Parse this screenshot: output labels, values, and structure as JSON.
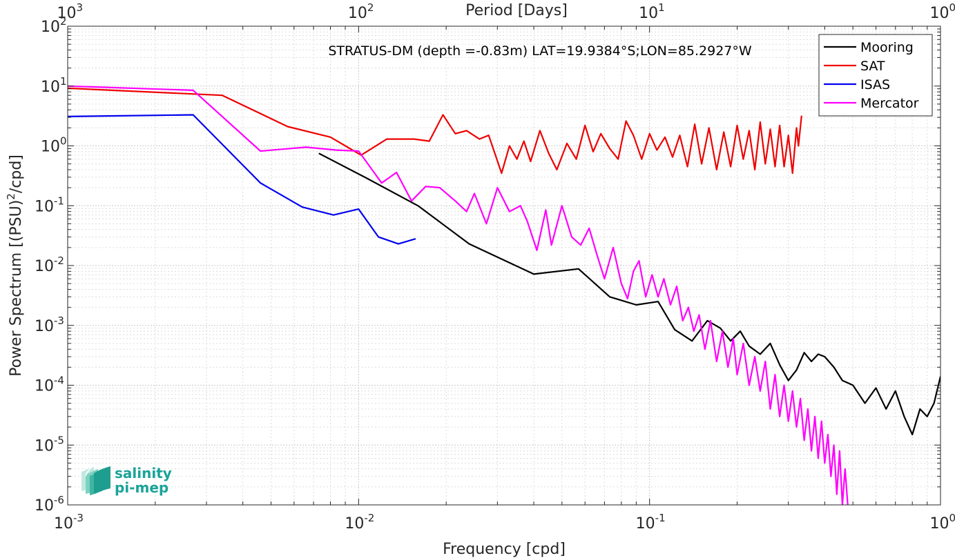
{
  "chart_data": {
    "type": "line",
    "title": "STRATUS-DM (depth =-0.83m) LAT=19.9384°S;LON=85.2927°W",
    "xlabel": "Frequency [cpd]",
    "ylabel": "Power Spectrum [(PSU)2/cpd]",
    "top_xlabel": "Period [Days]",
    "xscale": "log",
    "yscale": "log",
    "xlim": [
      0.001,
      1
    ],
    "ylim": [
      1e-06,
      100
    ],
    "grid": true,
    "legend_position": "top-right",
    "x_ticks": [
      {
        "value": 0.001,
        "base": "10",
        "exp": "-3"
      },
      {
        "value": 0.01,
        "base": "10",
        "exp": "-2"
      },
      {
        "value": 0.1,
        "base": "10",
        "exp": "-1"
      },
      {
        "value": 1,
        "base": "10",
        "exp": "0"
      }
    ],
    "top_ticks": [
      {
        "value": 0.001,
        "base": "10",
        "exp": "3"
      },
      {
        "value": 0.01,
        "base": "10",
        "exp": "2"
      },
      {
        "value": 0.1,
        "base": "10",
        "exp": "1"
      },
      {
        "value": 1,
        "base": "10",
        "exp": "0"
      }
    ],
    "y_ticks": [
      {
        "value": 100,
        "base": "10",
        "exp": "2"
      },
      {
        "value": 10,
        "base": "10",
        "exp": "1"
      },
      {
        "value": 1,
        "base": "10",
        "exp": "0"
      },
      {
        "value": 0.1,
        "base": "10",
        "exp": "-1"
      },
      {
        "value": 0.01,
        "base": "10",
        "exp": "-2"
      },
      {
        "value": 0.001,
        "base": "10",
        "exp": "-3"
      },
      {
        "value": 0.0001,
        "base": "10",
        "exp": "-4"
      },
      {
        "value": 1e-05,
        "base": "10",
        "exp": "-5"
      },
      {
        "value": 1e-06,
        "base": "10",
        "exp": "-6"
      }
    ],
    "series": [
      {
        "name": "Mooring",
        "color": "#000000",
        "points": [
          [
            0.0073,
            0.75
          ],
          [
            0.0105,
            0.3
          ],
          [
            0.016,
            0.1
          ],
          [
            0.024,
            0.023
          ],
          [
            0.04,
            0.0072
          ],
          [
            0.057,
            0.0088
          ],
          [
            0.073,
            0.003
          ],
          [
            0.09,
            0.0022
          ],
          [
            0.107,
            0.0025
          ],
          [
            0.122,
            0.00085
          ],
          [
            0.14,
            0.00055
          ],
          [
            0.158,
            0.0012
          ],
          [
            0.175,
            0.0009
          ],
          [
            0.19,
            0.00055
          ],
          [
            0.205,
            0.0008
          ],
          [
            0.22,
            0.00045
          ],
          [
            0.24,
            0.00033
          ],
          [
            0.26,
            0.0005
          ],
          [
            0.28,
            0.00022
          ],
          [
            0.3,
            0.00012
          ],
          [
            0.32,
            0.00018
          ],
          [
            0.34,
            0.00035
          ],
          [
            0.36,
            0.00025
          ],
          [
            0.38,
            0.00033
          ],
          [
            0.4,
            0.0003
          ],
          [
            0.43,
            0.0002
          ],
          [
            0.46,
            0.00012
          ],
          [
            0.5,
            0.0001
          ],
          [
            0.55,
            5e-05
          ],
          [
            0.6,
            9e-05
          ],
          [
            0.65,
            4e-05
          ],
          [
            0.7,
            8e-05
          ],
          [
            0.75,
            3e-05
          ],
          [
            0.8,
            1.5e-05
          ],
          [
            0.85,
            4e-05
          ],
          [
            0.9,
            3e-05
          ],
          [
            0.95,
            5e-05
          ],
          [
            1.0,
            0.00014
          ]
        ]
      },
      {
        "name": "SAT",
        "color": "#ee0000",
        "points": [
          [
            0.001,
            9.2
          ],
          [
            0.0034,
            7.0
          ],
          [
            0.0057,
            2.1
          ],
          [
            0.008,
            1.4
          ],
          [
            0.0102,
            0.7
          ],
          [
            0.0125,
            1.3
          ],
          [
            0.0155,
            1.3
          ],
          [
            0.0175,
            1.2
          ],
          [
            0.0195,
            3.3
          ],
          [
            0.0215,
            1.6
          ],
          [
            0.0235,
            1.8
          ],
          [
            0.026,
            1.3
          ],
          [
            0.028,
            1.5
          ],
          [
            0.031,
            0.35
          ],
          [
            0.033,
            1.0
          ],
          [
            0.035,
            0.6
          ],
          [
            0.037,
            1.2
          ],
          [
            0.039,
            0.55
          ],
          [
            0.042,
            1.8
          ],
          [
            0.045,
            0.75
          ],
          [
            0.048,
            0.4
          ],
          [
            0.052,
            1.1
          ],
          [
            0.056,
            0.6
          ],
          [
            0.06,
            2.2
          ],
          [
            0.064,
            0.8
          ],
          [
            0.068,
            1.6
          ],
          [
            0.073,
            0.9
          ],
          [
            0.078,
            0.6
          ],
          [
            0.083,
            2.6
          ],
          [
            0.088,
            1.5
          ],
          [
            0.094,
            0.6
          ],
          [
            0.1,
            1.6
          ],
          [
            0.106,
            0.85
          ],
          [
            0.113,
            1.4
          ],
          [
            0.12,
            0.65
          ],
          [
            0.127,
            1.5
          ],
          [
            0.135,
            0.45
          ],
          [
            0.143,
            2.3
          ],
          [
            0.151,
            0.5
          ],
          [
            0.16,
            2.0
          ],
          [
            0.17,
            0.4
          ],
          [
            0.18,
            1.7
          ],
          [
            0.19,
            0.45
          ],
          [
            0.2,
            2.2
          ],
          [
            0.21,
            0.6
          ],
          [
            0.22,
            1.8
          ],
          [
            0.23,
            0.4
          ],
          [
            0.24,
            2.5
          ],
          [
            0.25,
            0.5
          ],
          [
            0.26,
            1.9
          ],
          [
            0.27,
            0.45
          ],
          [
            0.28,
            2.2
          ],
          [
            0.29,
            0.45
          ],
          [
            0.3,
            1.5
          ],
          [
            0.31,
            0.35
          ],
          [
            0.32,
            2.0
          ],
          [
            0.325,
            1.0
          ],
          [
            0.333,
            3.2
          ]
        ]
      },
      {
        "name": "ISAS",
        "color": "#0000ee",
        "points": [
          [
            0.001,
            3.1
          ],
          [
            0.0027,
            3.3
          ],
          [
            0.0046,
            0.24
          ],
          [
            0.0064,
            0.095
          ],
          [
            0.0082,
            0.07
          ],
          [
            0.01,
            0.088
          ],
          [
            0.0117,
            0.03
          ],
          [
            0.0137,
            0.023
          ],
          [
            0.0157,
            0.028
          ]
        ]
      },
      {
        "name": "Mercator",
        "color": "#ff00ff",
        "points": [
          [
            0.001,
            10.0
          ],
          [
            0.0027,
            8.5
          ],
          [
            0.0046,
            0.82
          ],
          [
            0.0066,
            0.95
          ],
          [
            0.0084,
            0.85
          ],
          [
            0.01,
            0.82
          ],
          [
            0.012,
            0.24
          ],
          [
            0.0135,
            0.36
          ],
          [
            0.0152,
            0.12
          ],
          [
            0.017,
            0.21
          ],
          [
            0.019,
            0.2
          ],
          [
            0.0215,
            0.12
          ],
          [
            0.0235,
            0.08
          ],
          [
            0.025,
            0.16
          ],
          [
            0.0275,
            0.05
          ],
          [
            0.03,
            0.2
          ],
          [
            0.033,
            0.08
          ],
          [
            0.036,
            0.1
          ],
          [
            0.038,
            0.055
          ],
          [
            0.041,
            0.018
          ],
          [
            0.044,
            0.085
          ],
          [
            0.046,
            0.022
          ],
          [
            0.05,
            0.1
          ],
          [
            0.054,
            0.03
          ],
          [
            0.058,
            0.022
          ],
          [
            0.062,
            0.042
          ],
          [
            0.066,
            0.015
          ],
          [
            0.07,
            0.006
          ],
          [
            0.075,
            0.02
          ],
          [
            0.08,
            0.005
          ],
          [
            0.084,
            0.0028
          ],
          [
            0.088,
            0.008
          ],
          [
            0.092,
            0.012
          ],
          [
            0.097,
            0.003
          ],
          [
            0.102,
            0.007
          ],
          [
            0.107,
            0.003
          ],
          [
            0.112,
            0.006
          ],
          [
            0.118,
            0.0022
          ],
          [
            0.124,
            0.0045
          ],
          [
            0.13,
            0.0012
          ],
          [
            0.136,
            0.002
          ],
          [
            0.142,
            0.0008
          ],
          [
            0.148,
            0.0015
          ],
          [
            0.155,
            0.0004
          ],
          [
            0.162,
            0.0012
          ],
          [
            0.17,
            0.00025
          ],
          [
            0.178,
            0.0008
          ],
          [
            0.186,
            0.0002
          ],
          [
            0.194,
            0.0006
          ],
          [
            0.2,
            0.00015
          ],
          [
            0.21,
            0.0005
          ],
          [
            0.22,
            0.0001
          ],
          [
            0.23,
            0.0003
          ],
          [
            0.24,
            8e-05
          ],
          [
            0.25,
            0.00025
          ],
          [
            0.26,
            4e-05
          ],
          [
            0.27,
            0.00015
          ],
          [
            0.28,
            3e-05
          ],
          [
            0.29,
            0.0001
          ],
          [
            0.3,
            2.5e-05
          ],
          [
            0.31,
            8e-05
          ],
          [
            0.32,
            2e-05
          ],
          [
            0.33,
            6e-05
          ],
          [
            0.34,
            1.2e-05
          ],
          [
            0.35,
            4e-05
          ],
          [
            0.36,
            8e-06
          ],
          [
            0.37,
            3e-05
          ],
          [
            0.38,
            6e-06
          ],
          [
            0.39,
            2.5e-05
          ],
          [
            0.4,
            5e-06
          ],
          [
            0.41,
            1.5e-05
          ],
          [
            0.42,
            3e-06
          ],
          [
            0.43,
            1e-05
          ],
          [
            0.44,
            1.5e-06
          ],
          [
            0.45,
            8e-06
          ],
          [
            0.46,
            1e-06
          ],
          [
            0.47,
            4e-06
          ],
          [
            0.48,
            1e-06
          ]
        ]
      }
    ]
  },
  "logo": {
    "line1": "salinity",
    "line2": "pi-mep",
    "color": "#1aa39a"
  }
}
